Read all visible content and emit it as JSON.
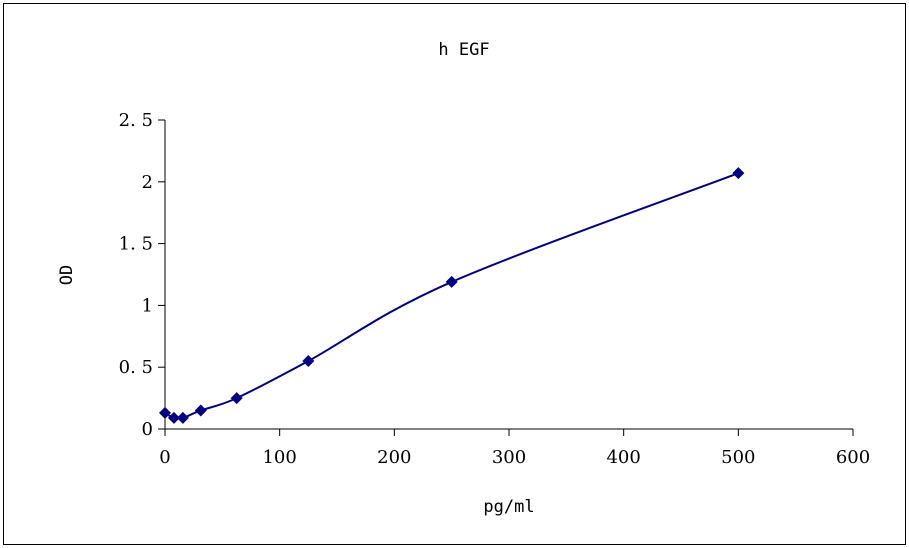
{
  "chart_data": {
    "type": "scatter",
    "title": "h EGF",
    "xlabel": "pg/ml",
    "ylabel": "OD",
    "xlim": [
      0,
      600
    ],
    "ylim": [
      0,
      2.5
    ],
    "xticks": [
      "0",
      "100",
      "200",
      "300",
      "400",
      "500",
      "600"
    ],
    "yticks": [
      "0",
      "0. 5",
      "1",
      "1. 5",
      "2",
      "2. 5"
    ],
    "series": [
      {
        "x": [
          0,
          7.8,
          15.6,
          31.2,
          62.5,
          125,
          250,
          500
        ],
        "y": [
          0.13,
          0.09,
          0.09,
          0.15,
          0.25,
          0.55,
          1.19,
          2.07
        ]
      }
    ],
    "grid": false,
    "legend": "none",
    "marker": "diamond",
    "line": "smoothed",
    "color": "#000080"
  }
}
